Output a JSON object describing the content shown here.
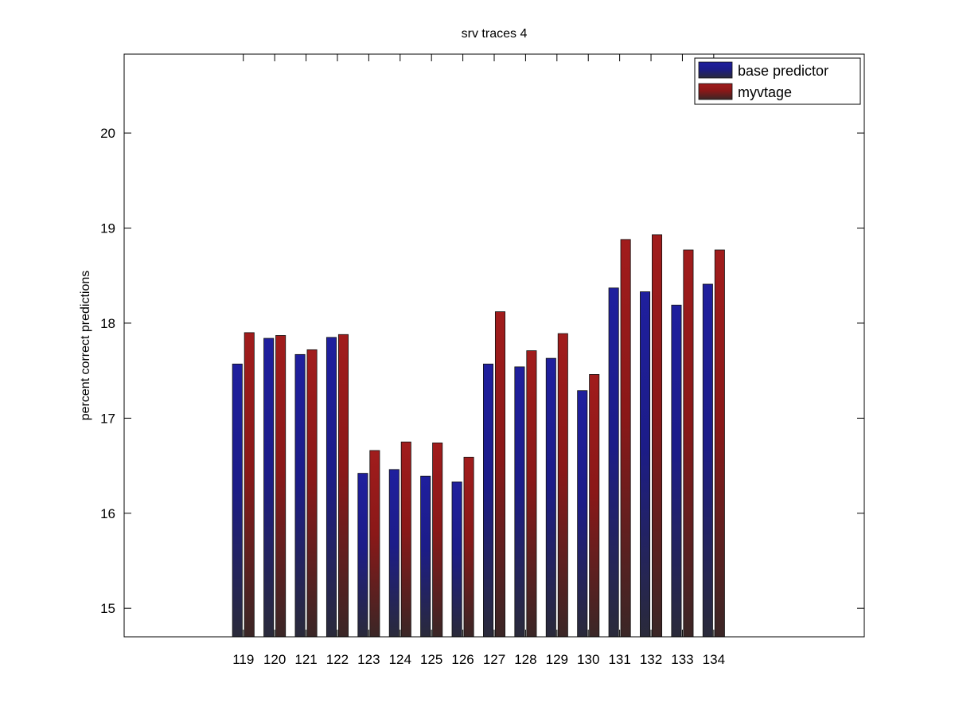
{
  "chart_data": {
    "type": "bar",
    "title": "srv traces 4",
    "xlabel": "",
    "ylabel": "percent correct predictions",
    "categories": [
      "119",
      "120",
      "121",
      "122",
      "123",
      "124",
      "125",
      "126",
      "127",
      "128",
      "129",
      "130",
      "131",
      "132",
      "133",
      "134"
    ],
    "series": [
      {
        "name": "base predictor",
        "color": "#1f1f9e",
        "values": [
          17.57,
          17.84,
          17.67,
          17.85,
          16.42,
          16.46,
          16.39,
          16.33,
          17.57,
          17.54,
          17.63,
          17.29,
          18.37,
          18.33,
          18.19,
          18.41
        ]
      },
      {
        "name": "myvtage",
        "color": "#a11c1c",
        "values": [
          17.9,
          17.87,
          17.72,
          17.88,
          16.66,
          16.75,
          16.74,
          16.59,
          18.12,
          17.71,
          17.89,
          17.46,
          18.88,
          18.93,
          18.77,
          18.77
        ]
      }
    ],
    "ylim": [
      14.7,
      20.83
    ],
    "yticks": [
      15,
      16,
      17,
      18,
      19,
      20
    ],
    "xlim": [
      -3.8,
      19.8
    ],
    "grid": false,
    "legend_position": "top-right"
  }
}
